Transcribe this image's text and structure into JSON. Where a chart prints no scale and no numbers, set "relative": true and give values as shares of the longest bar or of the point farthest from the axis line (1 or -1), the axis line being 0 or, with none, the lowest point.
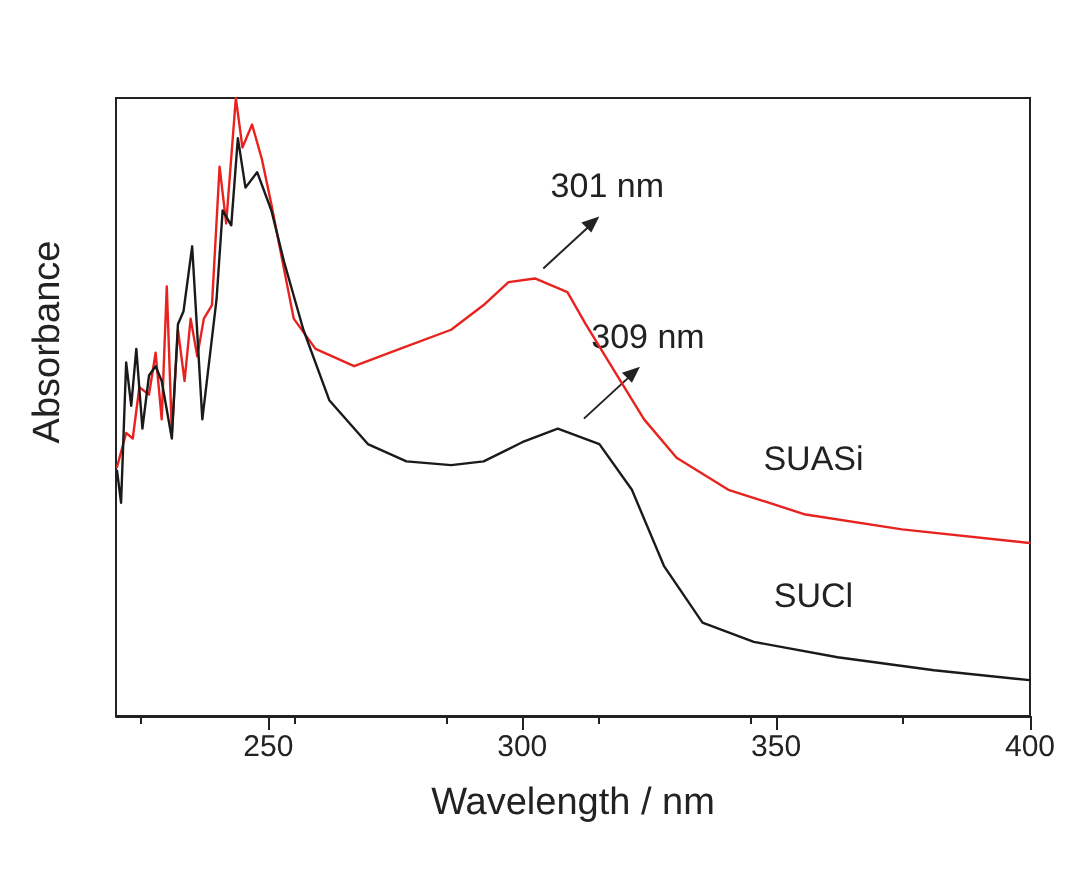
{
  "chart_data": {
    "type": "line",
    "relative": true,
    "xlabel": "Wavelength / nm",
    "ylabel": "Absorbance",
    "xlim": [
      220,
      400
    ],
    "xticks": [
      250,
      300,
      350,
      400
    ],
    "grid": false,
    "legend": false,
    "marker": "none",
    "line_style": "solid",
    "series": [
      {
        "name": "SUASi",
        "color": "#e8231f",
        "x": [
          220.2,
          222,
          223.3,
          224.6,
          226.5,
          227.8,
          229,
          230,
          231,
          232.2,
          233.5,
          234.7,
          236,
          237.3,
          238.9,
          240.4,
          241.7,
          243.6,
          244.9,
          246.8,
          248.7,
          250.6,
          252.5,
          255,
          259.3,
          266.9,
          275.9,
          286,
          292.4,
          297.3,
          302.5,
          308.9,
          312.5,
          317.8,
          324,
          330.4,
          340.6,
          355.8,
          374.8,
          399.9
        ],
        "values": [
          0.403,
          0.458,
          0.449,
          0.532,
          0.52,
          0.588,
          0.48,
          0.695,
          0.458,
          0.625,
          0.542,
          0.643,
          0.582,
          0.643,
          0.665,
          0.889,
          0.797,
          1,
          0.92,
          0.957,
          0.902,
          0.828,
          0.748,
          0.643,
          0.594,
          0.566,
          0.594,
          0.625,
          0.665,
          0.702,
          0.708,
          0.686,
          0.634,
          0.563,
          0.48,
          0.418,
          0.366,
          0.326,
          0.302,
          0.28
        ]
      },
      {
        "name": "SUCl",
        "color": "#1a1a1a",
        "x": [
          220.2,
          221,
          222,
          223,
          224,
          225.2,
          226.5,
          227.8,
          229,
          231,
          232.2,
          233.3,
          235,
          237,
          239.8,
          241,
          242.7,
          244,
          245.5,
          247.8,
          250.6,
          253.1,
          256.9,
          262,
          269.6,
          277.2,
          286,
          292.4,
          300,
          307,
          315.2,
          321.6,
          327.9,
          335.5,
          345.6,
          362.1,
          381.1,
          399.9
        ],
        "values": [
          0.397,
          0.345,
          0.572,
          0.502,
          0.594,
          0.465,
          0.551,
          0.566,
          0.542,
          0.449,
          0.634,
          0.655,
          0.76,
          0.48,
          0.674,
          0.818,
          0.794,
          0.935,
          0.855,
          0.88,
          0.818,
          0.735,
          0.625,
          0.511,
          0.44,
          0.412,
          0.406,
          0.412,
          0.443,
          0.465,
          0.44,
          0.366,
          0.243,
          0.151,
          0.12,
          0.095,
          0.074,
          0.058
        ]
      }
    ],
    "annotations": [
      {
        "text": "301 nm",
        "x": 301,
        "y": 0.708
      },
      {
        "text": "309 nm",
        "x": 309,
        "y": 0.465
      }
    ]
  }
}
